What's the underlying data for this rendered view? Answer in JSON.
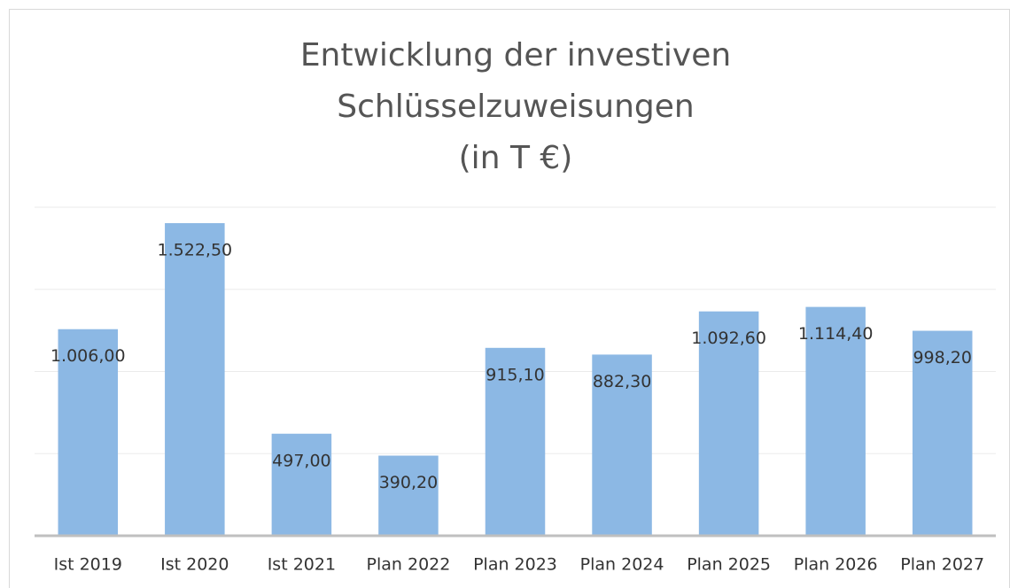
{
  "chart_data": {
    "type": "bar",
    "title": [
      "Entwicklung der investiven",
      "Schlüsselzuweisungen",
      "(in T €)"
    ],
    "categories": [
      "Ist 2019",
      "Ist 2020",
      "Ist 2021",
      "Plan 2022",
      "Plan 2023",
      "Plan 2024",
      "Plan 2025",
      "Plan 2026",
      "Plan 2027"
    ],
    "values": [
      1006.0,
      1522.5,
      497.0,
      390.2,
      915.1,
      882.3,
      1092.6,
      1114.4,
      998.2
    ],
    "value_labels": [
      "1.006,00",
      "1.522,50",
      "497,00",
      "390,20",
      "915,10",
      "882,30",
      "1.092,60",
      "1.114,40",
      "998,20"
    ],
    "color": "#8cb8e4",
    "ylim": [
      0,
      1600
    ],
    "yticks": [
      0,
      400,
      800,
      1200,
      1600
    ],
    "grid": true
  }
}
